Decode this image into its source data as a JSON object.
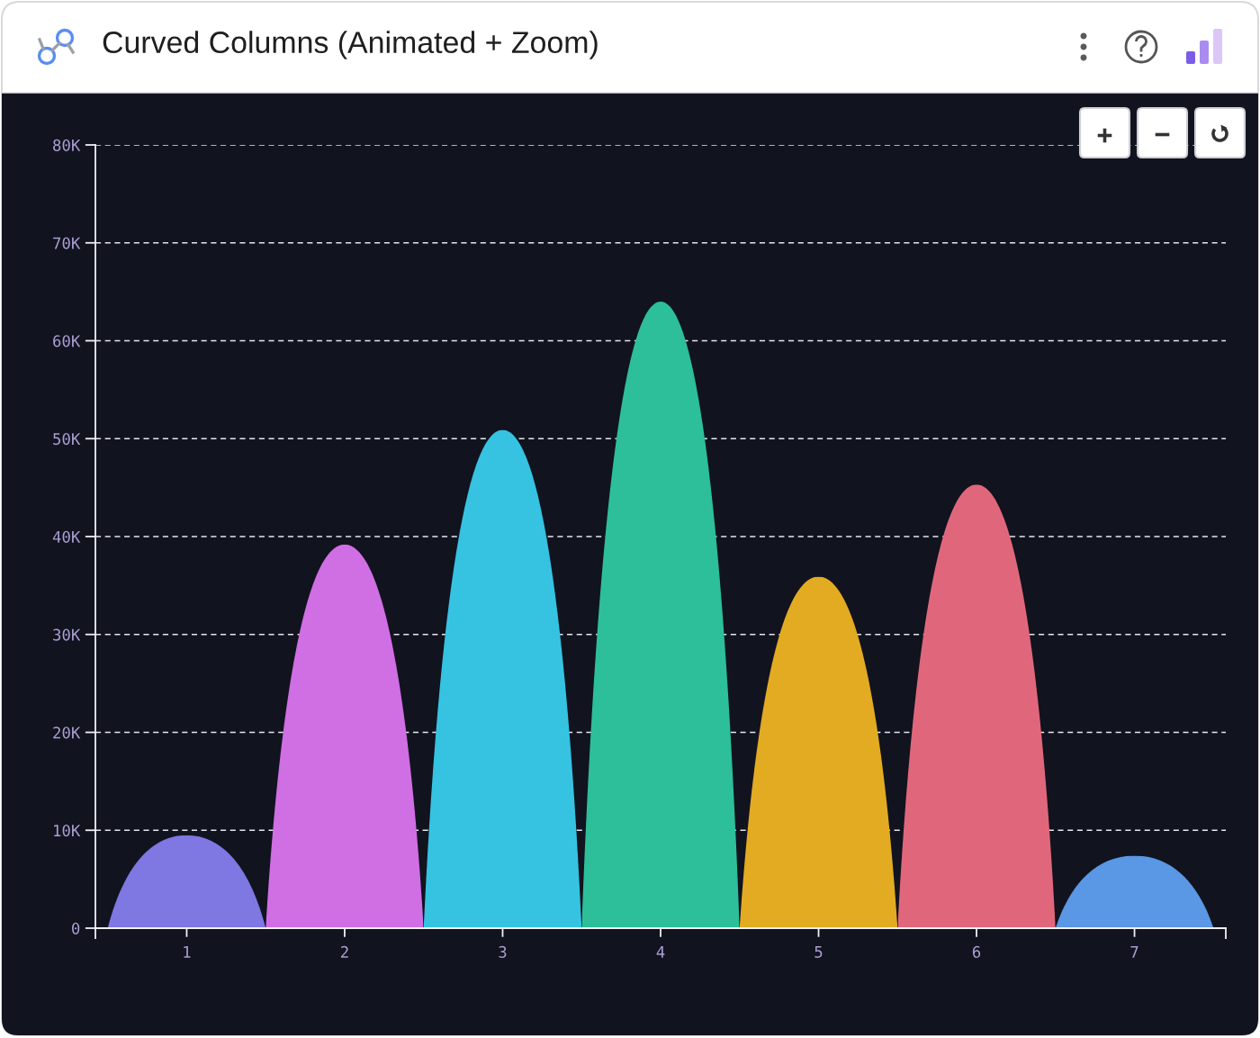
{
  "chart_data": {
    "type": "bar",
    "title": "Curved Columns (Animated + Zoom)",
    "categories": [
      "1",
      "2",
      "3",
      "4",
      "5",
      "6",
      "7"
    ],
    "values": [
      9500,
      39200,
      50900,
      64000,
      35900,
      45300,
      7400
    ],
    "colors": [
      "#7f77e2",
      "#d06ee4",
      "#35c3e1",
      "#2cbf9a",
      "#e3ab22",
      "#e0677b",
      "#5a97e4"
    ],
    "ylim": [
      0,
      80000
    ],
    "yticks": [
      0,
      {
        "value": 10000,
        "label": "10K"
      },
      {
        "value": 20000,
        "label": "20K"
      },
      {
        "value": 30000,
        "label": "30K"
      },
      {
        "value": 40000,
        "label": "40K"
      },
      {
        "value": 50000,
        "label": "50K"
      },
      {
        "value": 60000,
        "label": "60K"
      },
      {
        "value": 70000,
        "label": "70K"
      },
      {
        "value": 80000,
        "label": "80K"
      }
    ],
    "grid": "y"
  }
}
